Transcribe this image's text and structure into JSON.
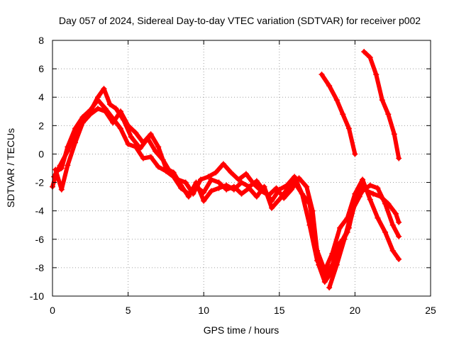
{
  "chart_data": {
    "type": "line",
    "title": "Day 057 of 2024, Sidereal Day-to-day VTEC variation (SDTVAR) for receiver p002",
    "xlabel": "GPS time / hours",
    "ylabel": "SDTVAR / TECUs",
    "xlim": [
      0,
      25
    ],
    "ylim": [
      -10,
      8
    ],
    "xticks": [
      0,
      5,
      10,
      15,
      20,
      25
    ],
    "yticks": [
      -10,
      -8,
      -6,
      -4,
      -2,
      0,
      2,
      4,
      6,
      8
    ],
    "grid": true,
    "marker": "plus",
    "color": "#ff0000",
    "series": [
      {
        "name": "track-1",
        "x": [
          0.0,
          0.3,
          0.6,
          1.0,
          1.5,
          2.0,
          2.5,
          3.0,
          3.5,
          4.0,
          4.5,
          5.0,
          5.5,
          6.0,
          6.5,
          7.0,
          7.5,
          8.0,
          8.5,
          9.0,
          9.5,
          10.0,
          10.5,
          11.0,
          11.5,
          12.0,
          12.5,
          13.0,
          13.5,
          14.0,
          14.5,
          15.0,
          15.5,
          16.0,
          16.5,
          17.0,
          17.5,
          18.0,
          18.5,
          19.0,
          19.5,
          20.0,
          20.5,
          21.0,
          21.5,
          22.0,
          22.5,
          22.9
        ],
        "y": [
          -2.3,
          -1.2,
          -1.0,
          0.5,
          1.8,
          2.6,
          3.1,
          3.8,
          3.2,
          2.5,
          1.8,
          0.7,
          0.5,
          -0.3,
          -0.2,
          -0.9,
          -1.2,
          -1.6,
          -2.4,
          -2.8,
          -2.3,
          -2.7,
          -1.8,
          -2.0,
          -2.5,
          -2.3,
          -2.8,
          -2.4,
          -3.0,
          -2.3,
          -3.8,
          -3.2,
          -2.5,
          -2.0,
          -2.8,
          -3.5,
          -6.8,
          -8.2,
          -7.0,
          -5.2,
          -4.5,
          -2.8,
          -1.8,
          -3.2,
          -4.5,
          -5.5,
          -6.8,
          -7.4
        ]
      },
      {
        "name": "track-2",
        "x": [
          0.1,
          0.5,
          1.0,
          1.5,
          2.0,
          2.5,
          3.0,
          3.4,
          3.8,
          4.2,
          4.7,
          5.2,
          5.8,
          6.3,
          6.8,
          7.3,
          7.8,
          8.3,
          8.8,
          9.3,
          9.8,
          10.3,
          10.8,
          11.3,
          11.8,
          12.3,
          12.8,
          13.3,
          13.8,
          14.3,
          14.8,
          15.3,
          15.8,
          16.3,
          16.8,
          17.2,
          17.6,
          18.0,
          18.4,
          18.8,
          19.2,
          19.6,
          20.0,
          20.4,
          20.8,
          21.2,
          21.7,
          22.2,
          22.7,
          22.9
        ],
        "y": [
          -1.6,
          -0.8,
          0.2,
          1.5,
          2.5,
          3.0,
          4.0,
          4.6,
          3.5,
          3.2,
          2.4,
          1.2,
          0.4,
          1.1,
          0.2,
          -0.4,
          -1.3,
          -1.8,
          -2.0,
          -2.8,
          -1.8,
          -1.6,
          -1.3,
          -0.7,
          -1.3,
          -1.8,
          -1.4,
          -2.1,
          -2.6,
          -2.9,
          -2.4,
          -3.1,
          -2.5,
          -1.7,
          -2.3,
          -4.0,
          -7.8,
          -9.0,
          -8.4,
          -6.5,
          -6.0,
          -5.2,
          -3.3,
          -2.2,
          -2.6,
          -2.8,
          -3.0,
          -3.5,
          -4.2,
          -4.8
        ]
      },
      {
        "name": "track-3",
        "x": [
          0.2,
          0.6,
          1.0,
          1.5,
          2.0,
          2.5,
          3.0,
          3.5,
          4.0,
          4.5,
          5.0,
          5.5,
          6.0,
          6.5,
          7.0,
          7.5,
          8.0,
          8.5,
          9.0,
          9.5,
          10.0,
          10.5,
          11.0,
          11.5,
          12.0,
          12.5,
          13.0,
          13.5,
          14.0,
          14.5,
          15.0,
          15.5,
          16.0,
          16.5,
          17.0,
          17.5,
          18.0,
          18.5,
          19.0,
          19.5,
          20.0,
          20.5,
          21.0,
          21.5,
          22.0,
          22.5,
          22.9
        ],
        "y": [
          -1.1,
          -2.5,
          -0.8,
          0.8,
          2.2,
          2.8,
          3.2,
          3.0,
          2.2,
          3.0,
          2.0,
          1.5,
          0.8,
          1.4,
          0.5,
          -1.0,
          -1.3,
          -2.2,
          -3.0,
          -2.0,
          -3.3,
          -2.6,
          -2.4,
          -2.2,
          -2.5,
          -2.0,
          -2.3,
          -1.9,
          -2.6,
          -3.3,
          -2.5,
          -2.2,
          -1.6,
          -2.8,
          -5.0,
          -7.5,
          -8.6,
          -7.8,
          -6.5,
          -5.5,
          -3.5,
          -2.6,
          -2.2,
          -2.4,
          -3.5,
          -5.0,
          -5.8
        ]
      },
      {
        "name": "track-4",
        "x": [
          17.8,
          18.3,
          18.8,
          19.2,
          19.6,
          20.0
        ],
        "y": [
          5.6,
          4.8,
          3.8,
          2.8,
          1.8,
          0.0
        ]
      },
      {
        "name": "track-5",
        "x": [
          20.6,
          21.0,
          21.4,
          21.8,
          22.2,
          22.6,
          22.9
        ],
        "y": [
          7.2,
          6.8,
          5.6,
          3.8,
          2.8,
          1.4,
          -0.3
        ]
      },
      {
        "name": "track-6",
        "x": [
          18.3,
          18.8,
          19.3,
          19.8,
          20.3
        ],
        "y": [
          -9.4,
          -7.8,
          -6.0,
          -4.0,
          -3.0
        ]
      }
    ]
  }
}
